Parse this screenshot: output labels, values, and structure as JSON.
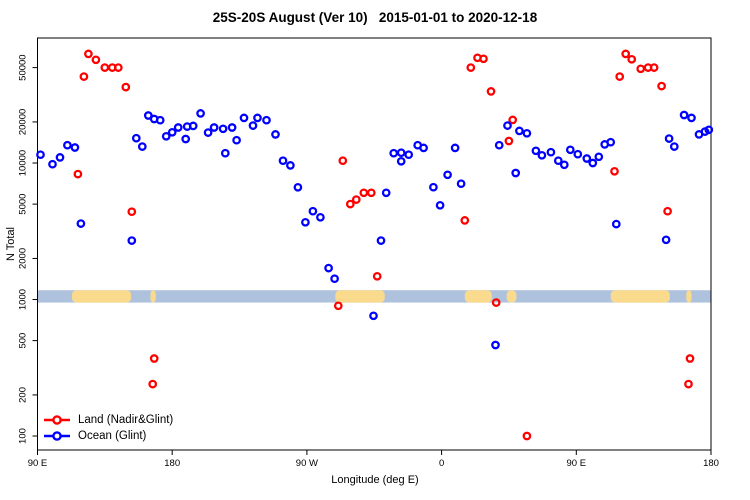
{
  "title": "25S-20S August (Ver 10)   2015-01-01 to 2020-12-18",
  "chart_data": {
    "type": "scatter",
    "title": "25S-20S August (Ver 10)   2015-01-01 to 2020-12-18",
    "xlabel": "Longitude (deg E)",
    "ylabel": "N Total",
    "x_axis": {
      "min": 90,
      "max": 540,
      "ticks": [
        {
          "deg": 90,
          "label": "90 E"
        },
        {
          "deg": 180,
          "label": "180"
        },
        {
          "deg": 270,
          "label": "90 W"
        },
        {
          "deg": 360,
          "label": "0"
        },
        {
          "deg": 450,
          "label": "90 E"
        },
        {
          "deg": 540,
          "label": "180"
        }
      ]
    },
    "y_axis": {
      "scale": "log",
      "min": 79,
      "max": 82400,
      "ticks": [
        100,
        200,
        500,
        1000,
        2000,
        5000,
        10000,
        20000,
        50000
      ]
    },
    "grid": false,
    "legend_position": "bottom-left",
    "map_band": {
      "description": "latitude-band world map strip drawn across the plot",
      "top_value": 1170,
      "bottom_value": 950,
      "ocean_color": "#aec2dd",
      "land_color": "#fada8d",
      "land_patches_deg": [
        [
          113,
          152.5
        ],
        [
          165.5,
          169
        ],
        [
          289,
          322
        ],
        [
          375.5,
          393.5
        ],
        [
          403.5,
          410
        ],
        [
          473,
          512.5
        ],
        [
          523.5,
          527
        ]
      ]
    },
    "series": [
      {
        "name": "Land (Nadir&Glint)",
        "color": "#ff0000",
        "points": [
          [
            117,
            8300
          ],
          [
            121,
            43000
          ],
          [
            124,
            63000
          ],
          [
            129,
            57000
          ],
          [
            135,
            50000
          ],
          [
            140,
            50000
          ],
          [
            144,
            50000
          ],
          [
            149,
            36000
          ],
          [
            153,
            4400
          ],
          [
            167,
            240
          ],
          [
            168,
            370
          ],
          [
            291,
            900
          ],
          [
            294,
            10400
          ],
          [
            299,
            5000
          ],
          [
            303,
            5400
          ],
          [
            308,
            6050
          ],
          [
            313,
            6050
          ],
          [
            317,
            1480
          ],
          [
            375.5,
            3800
          ],
          [
            379.5,
            50000
          ],
          [
            384,
            59000
          ],
          [
            388,
            58000
          ],
          [
            393,
            33500
          ],
          [
            396.5,
            950
          ],
          [
            405,
            14500
          ],
          [
            407.5,
            20700
          ],
          [
            417,
            100
          ],
          [
            475.5,
            8700
          ],
          [
            479,
            43000
          ],
          [
            483,
            63000
          ],
          [
            487,
            57500
          ],
          [
            493,
            49000
          ],
          [
            498,
            50000
          ],
          [
            502,
            50000
          ],
          [
            507,
            36600
          ],
          [
            511,
            4440
          ],
          [
            525,
            240
          ],
          [
            526,
            370
          ]
        ]
      },
      {
        "name": "Ocean (Glint)",
        "color": "#0000ff",
        "points": [
          [
            92,
            11500
          ],
          [
            100,
            9800
          ],
          [
            105,
            11000
          ],
          [
            110,
            13500
          ],
          [
            115,
            13000
          ],
          [
            119,
            3600
          ],
          [
            153,
            2700
          ],
          [
            156,
            15200
          ],
          [
            160,
            13200
          ],
          [
            164,
            22300
          ],
          [
            168,
            21000
          ],
          [
            172,
            20600
          ],
          [
            176,
            15700
          ],
          [
            180,
            16800
          ],
          [
            184,
            18200
          ],
          [
            189,
            15000
          ],
          [
            190,
            18500
          ],
          [
            194,
            18700
          ],
          [
            199,
            23100
          ],
          [
            204,
            16700
          ],
          [
            208,
            18200
          ],
          [
            214,
            17800
          ],
          [
            215.5,
            11800
          ],
          [
            220,
            18200
          ],
          [
            223,
            14700
          ],
          [
            228,
            21400
          ],
          [
            234,
            18800
          ],
          [
            237,
            21400
          ],
          [
            243,
            20600
          ],
          [
            249,
            16200
          ],
          [
            254,
            10400
          ],
          [
            259,
            9600
          ],
          [
            264,
            6640
          ],
          [
            269,
            3680
          ],
          [
            274,
            4440
          ],
          [
            279,
            4000
          ],
          [
            284.5,
            1700
          ],
          [
            288.5,
            1420
          ],
          [
            314.5,
            760
          ],
          [
            319.5,
            2700
          ],
          [
            323,
            6050
          ],
          [
            328,
            11800
          ],
          [
            333,
            11900
          ],
          [
            333,
            10300
          ],
          [
            338,
            11500
          ],
          [
            344,
            13500
          ],
          [
            348,
            12900
          ],
          [
            354.5,
            6650
          ],
          [
            359,
            4900
          ],
          [
            364,
            8200
          ],
          [
            369,
            12900
          ],
          [
            373,
            7050
          ],
          [
            396,
            464
          ],
          [
            398.5,
            13500
          ],
          [
            404,
            18800
          ],
          [
            409.5,
            8450
          ],
          [
            412,
            17200
          ],
          [
            417,
            16500
          ],
          [
            423,
            12300
          ],
          [
            427,
            11400
          ],
          [
            433,
            12000
          ],
          [
            438,
            10400
          ],
          [
            442,
            9700
          ],
          [
            446,
            12500
          ],
          [
            451,
            11600
          ],
          [
            457,
            10800
          ],
          [
            461,
            10000
          ],
          [
            465,
            11100
          ],
          [
            469,
            13700
          ],
          [
            473,
            14200
          ],
          [
            476.7,
            3570
          ],
          [
            510,
            2740
          ],
          [
            512,
            15100
          ],
          [
            515.5,
            13200
          ],
          [
            522,
            22500
          ],
          [
            527,
            21400
          ],
          [
            532,
            16200
          ],
          [
            536,
            17000
          ],
          [
            538.5,
            17500
          ]
        ]
      }
    ]
  }
}
